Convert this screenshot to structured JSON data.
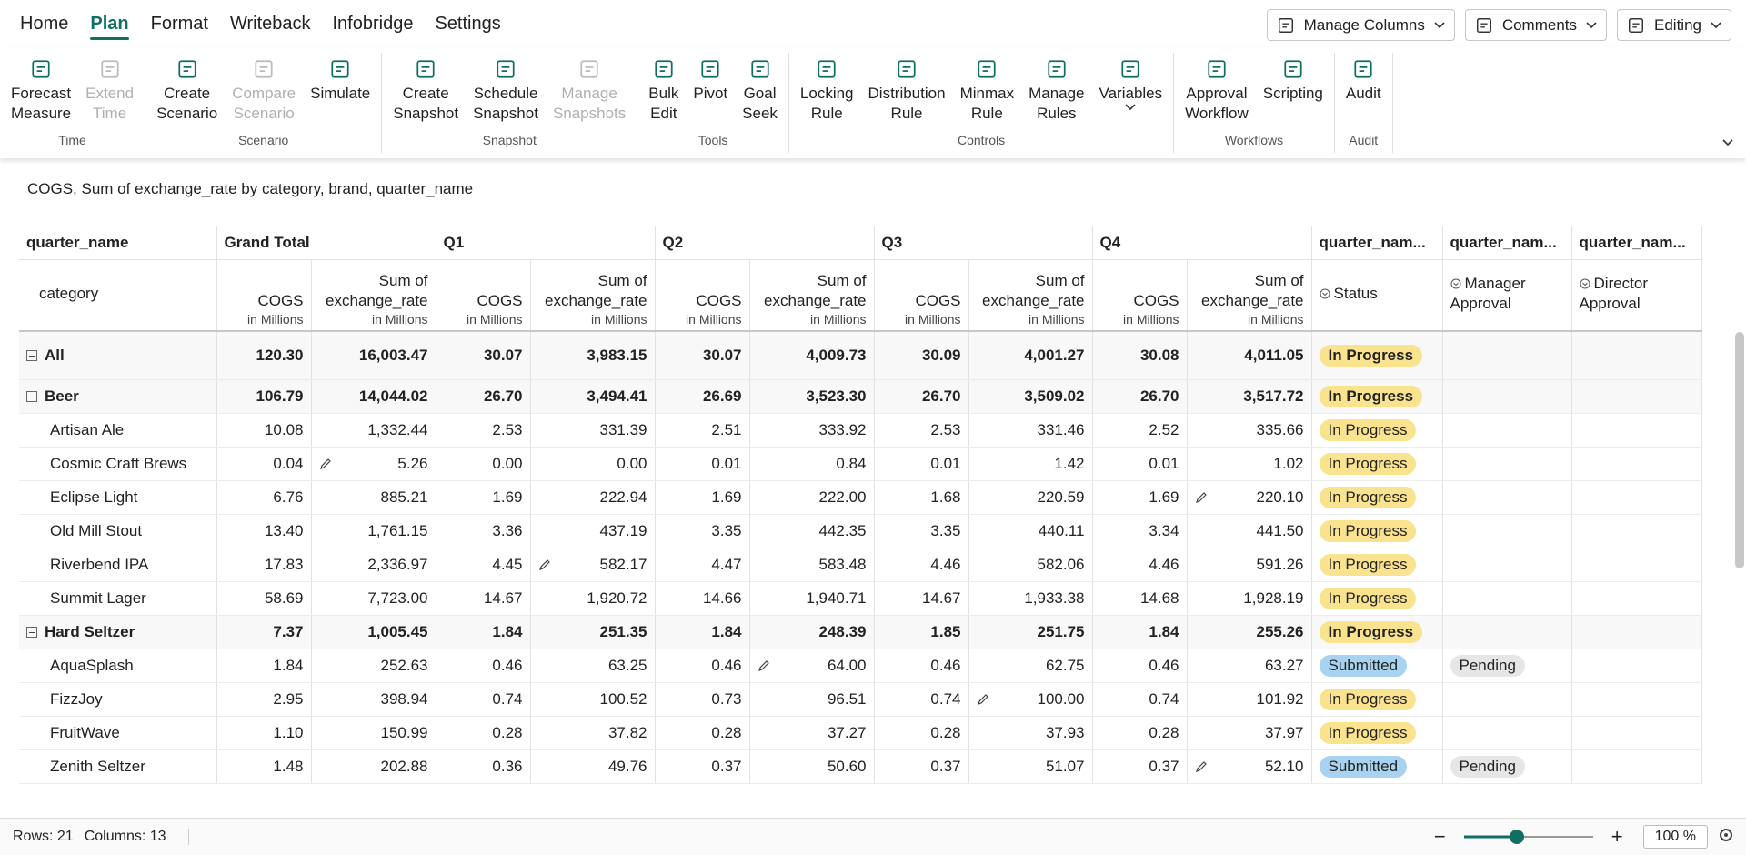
{
  "menu": {
    "tabs": [
      "Home",
      "Plan",
      "Format",
      "Writeback",
      "Infobridge",
      "Settings"
    ],
    "active_tab": 1,
    "buttons": [
      "Manage Columns",
      "Comments",
      "Editing"
    ]
  },
  "ribbon": {
    "groups": [
      {
        "label": "Time",
        "buttons": [
          {
            "lines": [
              "Forecast",
              "Measure"
            ]
          },
          {
            "lines": [
              "Extend",
              "Time"
            ],
            "disabled": true
          }
        ]
      },
      {
        "label": "Scenario",
        "buttons": [
          {
            "lines": [
              "Create",
              "Scenario"
            ]
          },
          {
            "lines": [
              "Compare",
              "Scenario"
            ],
            "disabled": true
          },
          {
            "lines": [
              "Simulate"
            ]
          }
        ]
      },
      {
        "label": "Snapshot",
        "buttons": [
          {
            "lines": [
              "Create",
              "Snapshot"
            ]
          },
          {
            "lines": [
              "Schedule",
              "Snapshot"
            ]
          },
          {
            "lines": [
              "Manage",
              "Snapshots"
            ],
            "disabled": true
          }
        ]
      },
      {
        "label": "Tools",
        "buttons": [
          {
            "lines": [
              "Bulk",
              "Edit"
            ]
          },
          {
            "lines": [
              "Pivot"
            ]
          },
          {
            "lines": [
              "Goal",
              "Seek"
            ]
          }
        ]
      },
      {
        "label": "Controls",
        "buttons": [
          {
            "lines": [
              "Locking",
              "Rule"
            ]
          },
          {
            "lines": [
              "Distribution",
              "Rule"
            ]
          },
          {
            "lines": [
              "Minmax",
              "Rule"
            ]
          },
          {
            "lines": [
              "Manage",
              "Rules"
            ]
          },
          {
            "lines": [
              "Variables"
            ],
            "dropdown": true
          }
        ]
      },
      {
        "label": "Workflows",
        "buttons": [
          {
            "lines": [
              "Approval",
              "Workflow"
            ]
          },
          {
            "lines": [
              "Scripting"
            ]
          }
        ]
      },
      {
        "label": "Audit",
        "buttons": [
          {
            "lines": [
              "Audit"
            ]
          }
        ]
      }
    ]
  },
  "table": {
    "title": "COGS, Sum of exchange_rate by category, brand, quarter_name",
    "corner_top": "quarter_name",
    "corner_bottom": "category",
    "column_groups": [
      "Grand Total",
      "Q1",
      "Q2",
      "Q3",
      "Q4"
    ],
    "measures": [
      {
        "name": [
          "COGS"
        ],
        "unit": "in Millions"
      },
      {
        "name": [
          "Sum of",
          "exchange_rate"
        ],
        "unit": "in Millions"
      }
    ],
    "status_columns": [
      {
        "top": "quarter_nam...",
        "sub": [
          "Status"
        ]
      },
      {
        "top": "quarter_nam...",
        "sub": [
          "Manager",
          "Approval"
        ]
      },
      {
        "top": "quarter_nam...",
        "sub": [
          "Director",
          "Approval"
        ]
      }
    ],
    "rows": [
      {
        "label": "All",
        "group": true,
        "values": [
          "120.30",
          "16,003.47",
          "30.07",
          "3,983.15",
          "30.07",
          "4,009.73",
          "30.09",
          "4,001.27",
          "30.08",
          "4,011.05"
        ],
        "status": "In Progress"
      },
      {
        "label": "Beer",
        "group": true,
        "values": [
          "106.79",
          "14,044.02",
          "26.70",
          "3,494.41",
          "26.69",
          "3,523.30",
          "26.70",
          "3,509.02",
          "26.70",
          "3,517.72"
        ],
        "status": "In Progress"
      },
      {
        "label": "Artisan Ale",
        "values": [
          "10.08",
          "1,332.44",
          "2.53",
          "331.39",
          "2.51",
          "333.92",
          "2.53",
          "331.46",
          "2.52",
          "335.66"
        ],
        "status": "In Progress"
      },
      {
        "label": "Cosmic Craft Brews",
        "values": [
          "0.04",
          "5.26",
          "0.00",
          "0.00",
          "0.01",
          "0.84",
          "0.01",
          "1.42",
          "0.01",
          "1.02"
        ],
        "status": "In Progress"
      },
      {
        "label": "Eclipse Light",
        "values": [
          "6.76",
          "885.21",
          "1.69",
          "222.94",
          "1.69",
          "222.00",
          "1.68",
          "220.59",
          "1.69",
          "220.10"
        ],
        "status": "In Progress"
      },
      {
        "label": "Old Mill Stout",
        "values": [
          "13.40",
          "1,761.15",
          "3.36",
          "437.19",
          "3.35",
          "442.35",
          "3.35",
          "440.11",
          "3.34",
          "441.50"
        ],
        "status": "In Progress"
      },
      {
        "label": "Riverbend IPA",
        "values": [
          "17.83",
          "2,336.97",
          "4.45",
          "582.17",
          "4.47",
          "583.48",
          "4.46",
          "582.06",
          "4.46",
          "591.26"
        ],
        "status": "In Progress"
      },
      {
        "label": "Summit Lager",
        "values": [
          "58.69",
          "7,723.00",
          "14.67",
          "1,920.72",
          "14.66",
          "1,940.71",
          "14.67",
          "1,933.38",
          "14.68",
          "1,928.19"
        ],
        "status": "In Progress"
      },
      {
        "label": "Hard Seltzer",
        "group": true,
        "values": [
          "7.37",
          "1,005.45",
          "1.84",
          "251.35",
          "1.84",
          "248.39",
          "1.85",
          "251.75",
          "1.84",
          "255.26"
        ],
        "status": "In Progress"
      },
      {
        "label": "AquaSplash",
        "values": [
          "1.84",
          "252.63",
          "0.46",
          "63.25",
          "0.46",
          "64.00",
          "0.46",
          "62.75",
          "0.46",
          "63.27"
        ],
        "status": "Submitted",
        "manager": "Pending"
      },
      {
        "label": "FizzJoy",
        "values": [
          "2.95",
          "398.94",
          "0.74",
          "100.52",
          "0.73",
          "96.51",
          "0.74",
          "100.00",
          "0.74",
          "101.92"
        ],
        "status": "In Progress"
      },
      {
        "label": "FruitWave",
        "values": [
          "1.10",
          "150.99",
          "0.28",
          "37.82",
          "0.28",
          "37.27",
          "0.28",
          "37.93",
          "0.28",
          "37.97"
        ],
        "status": "In Progress"
      },
      {
        "label": "Zenith Seltzer",
        "values": [
          "1.48",
          "202.88",
          "0.36",
          "49.76",
          "0.37",
          "50.60",
          "0.37",
          "51.07",
          "0.37",
          "52.10"
        ],
        "status": "Submitted",
        "manager": "Pending"
      }
    ]
  },
  "footer": {
    "rows": "Rows: 21",
    "columns": "Columns: 13",
    "zoom": "100 %"
  }
}
